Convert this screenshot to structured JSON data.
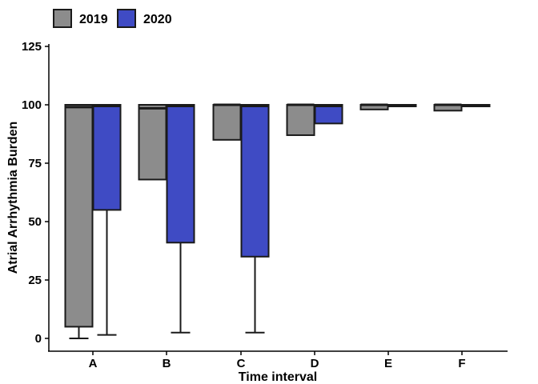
{
  "chart_data": {
    "type": "boxplot",
    "title": "",
    "xlabel": "Time interval",
    "ylabel": "Atrial Arrhythmia Burden",
    "ylim": [
      -5,
      127
    ],
    "yticks": [
      0,
      25,
      50,
      75,
      100,
      125
    ],
    "categories": [
      "A",
      "B",
      "C",
      "D",
      "E",
      "F"
    ],
    "legend_position": "top-left",
    "grid": false,
    "series": [
      {
        "name": "2019",
        "color": "#8c8c8c",
        "boxes": [
          {
            "min": 0,
            "q1": 5,
            "median": 99,
            "q3": 100,
            "max": 100
          },
          {
            "min": 68,
            "q1": 68,
            "median": 98.5,
            "q3": 100,
            "max": 100
          },
          {
            "min": 85,
            "q1": 85,
            "median": 100,
            "q3": 100,
            "max": 100
          },
          {
            "min": 87,
            "q1": 87,
            "median": 100,
            "q3": 100,
            "max": 100
          },
          {
            "min": 98,
            "q1": 98,
            "median": 100,
            "q3": 100,
            "max": 100
          },
          {
            "min": 97.5,
            "q1": 97.5,
            "median": 100,
            "q3": 100,
            "max": 100
          }
        ]
      },
      {
        "name": "2020",
        "color": "#3f4bc4",
        "boxes": [
          {
            "min": 1.5,
            "q1": 55,
            "median": 99.5,
            "q3": 100,
            "max": 100
          },
          {
            "min": 2.5,
            "q1": 41,
            "median": 99.5,
            "q3": 100,
            "max": 100
          },
          {
            "min": 2.5,
            "q1": 35,
            "median": 99.5,
            "q3": 100,
            "max": 100
          },
          {
            "min": 92,
            "q1": 92,
            "median": 99.5,
            "q3": 100,
            "max": 100
          },
          {
            "min": 99.5,
            "q1": 99.5,
            "median": 99.5,
            "q3": 100,
            "max": 100
          },
          {
            "min": 99.5,
            "q1": 99.5,
            "median": 99.5,
            "q3": 100,
            "max": 100
          }
        ]
      }
    ]
  }
}
